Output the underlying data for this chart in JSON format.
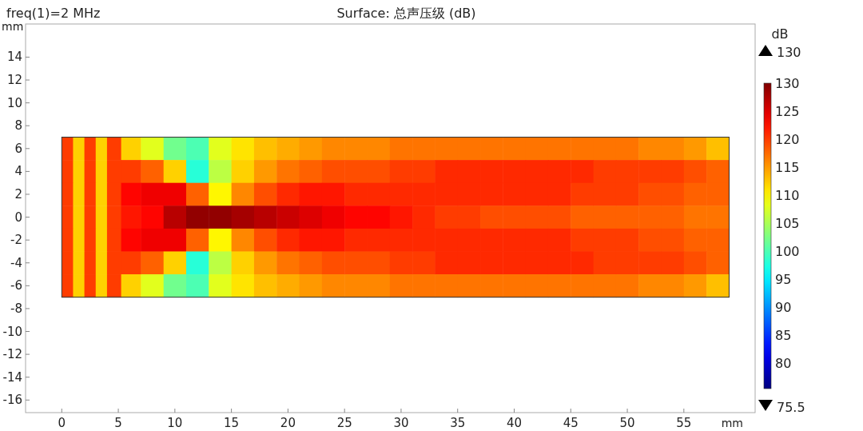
{
  "chart_data": {
    "type": "heatmap",
    "title": "Surface: 总声压级 (dB)",
    "xlabel": "mm",
    "ylabel": "mm",
    "clabel": "dB",
    "annotations": [
      "freq(1)=2 MHz",
      "130",
      "75.5"
    ],
    "x": [
      0.5,
      1.5,
      2.5,
      3.5,
      4.5,
      6,
      8,
      10,
      12,
      14,
      16,
      18,
      20,
      22,
      24,
      26,
      28,
      30,
      32,
      34,
      36,
      38,
      40,
      42,
      44,
      46,
      48,
      50,
      52,
      54,
      56,
      58
    ],
    "y": [
      6,
      4,
      2,
      0,
      -2,
      -4,
      -6
    ],
    "cells": [
      [
        120,
        112,
        120,
        112,
        120,
        112,
        108,
        102,
        100,
        108,
        111,
        113,
        114,
        115,
        116,
        116,
        116,
        117,
        117,
        117,
        117,
        117,
        117,
        117,
        117,
        117,
        117,
        117,
        116,
        116,
        115,
        113
      ],
      [
        120,
        112,
        120,
        112,
        120,
        120,
        118,
        112,
        98,
        106,
        112,
        115,
        117,
        118,
        119,
        119,
        119,
        120,
        120,
        121,
        121,
        121,
        121,
        121,
        121,
        121,
        120,
        120,
        120,
        120,
        119,
        118
      ],
      [
        120,
        112,
        120,
        112,
        120,
        123,
        124,
        124,
        118,
        110,
        116,
        119,
        121,
        122,
        122,
        121,
        121,
        121,
        121,
        121,
        121,
        121,
        121,
        121,
        121,
        120,
        120,
        120,
        119,
        119,
        118,
        118
      ],
      [
        120,
        112,
        120,
        112,
        120,
        122,
        123,
        127,
        129,
        129,
        128,
        127,
        126,
        125,
        124,
        123,
        123,
        122,
        121,
        120,
        120,
        119,
        119,
        119,
        119,
        118,
        118,
        118,
        118,
        118,
        117,
        117
      ],
      [
        120,
        112,
        120,
        112,
        120,
        123,
        124,
        124,
        118,
        110,
        116,
        119,
        121,
        122,
        122,
        121,
        121,
        121,
        121,
        121,
        121,
        121,
        121,
        121,
        121,
        120,
        120,
        120,
        119,
        119,
        118,
        118
      ],
      [
        120,
        112,
        120,
        112,
        120,
        120,
        118,
        112,
        98,
        106,
        112,
        115,
        117,
        118,
        119,
        119,
        119,
        120,
        120,
        121,
        121,
        121,
        121,
        121,
        121,
        121,
        120,
        120,
        120,
        120,
        119,
        118
      ],
      [
        120,
        112,
        120,
        112,
        120,
        112,
        108,
        102,
        100,
        108,
        111,
        113,
        114,
        115,
        116,
        116,
        116,
        117,
        117,
        117,
        117,
        117,
        117,
        117,
        117,
        117,
        117,
        117,
        116,
        116,
        115,
        113
      ]
    ],
    "xlim": [
      -3.2,
      61.3
    ],
    "ylim": [
      -17.1,
      16.9
    ],
    "xticks": [
      0,
      5,
      10,
      15,
      20,
      25,
      30,
      35,
      40,
      45,
      50,
      55
    ],
    "yticks": [
      -16,
      -14,
      -12,
      -10,
      -8,
      -6,
      -4,
      -2,
      0,
      2,
      4,
      6,
      8,
      10,
      12,
      14
    ],
    "clim": [
      75.5,
      130
    ],
    "cticks": [
      80,
      85,
      90,
      95,
      100,
      105,
      110,
      115,
      120,
      125,
      130
    ]
  }
}
